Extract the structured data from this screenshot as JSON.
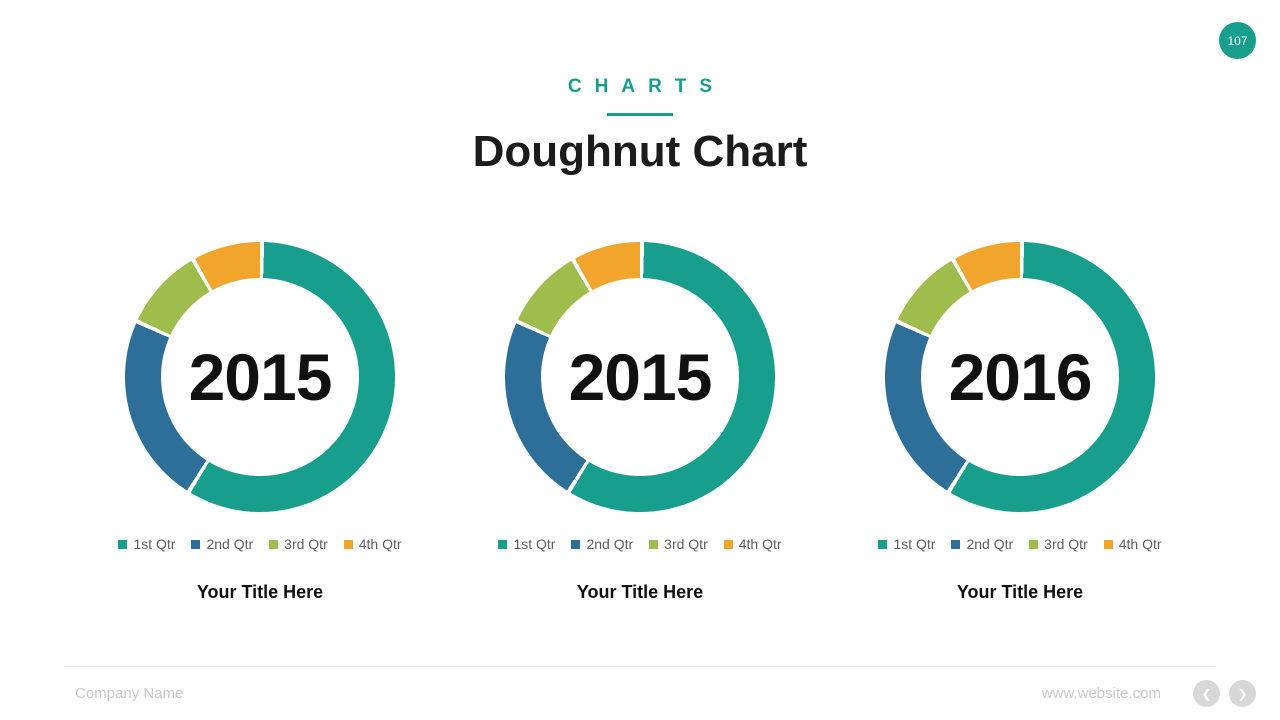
{
  "page_badge": "107",
  "header": {
    "eyebrow": "CHARTS",
    "title": "Doughnut Chart"
  },
  "accent_color": "#189e8c",
  "footer": {
    "company": "Company Name",
    "website": "www.website.com",
    "prev_icon": "❮",
    "next_icon": "❯"
  },
  "chart_data": [
    {
      "type": "doughnut",
      "center_label": "2015",
      "title": "Your Title Here",
      "categories": [
        "1st Qtr",
        "2nd Qtr",
        "3rd Qtr",
        "4th Qtr"
      ],
      "values": [
        58.6,
        22.9,
        10.0,
        8.5
      ],
      "unit": "percent",
      "segment_colors": [
        "#189e8c",
        "#2d6f99",
        "#9fbd4d",
        "#f2a52c"
      ],
      "hole_color": "#ffffff",
      "gap_degrees": 1.8,
      "start_angle": 0,
      "legend_position": "bottom"
    },
    {
      "type": "doughnut",
      "center_label": "2015",
      "title": "Your Title Here",
      "categories": [
        "1st Qtr",
        "2nd Qtr",
        "3rd Qtr",
        "4th Qtr"
      ],
      "values": [
        58.6,
        22.9,
        10.0,
        8.5
      ],
      "unit": "percent",
      "segment_colors": [
        "#189e8c",
        "#2d6f99",
        "#9fbd4d",
        "#f2a52c"
      ],
      "hole_color": "#ffffff",
      "gap_degrees": 1.8,
      "start_angle": 0,
      "legend_position": "bottom"
    },
    {
      "type": "doughnut",
      "center_label": "2016",
      "title": "Your Title Here",
      "categories": [
        "1st Qtr",
        "2nd Qtr",
        "3rd Qtr",
        "4th Qtr"
      ],
      "values": [
        58.6,
        22.9,
        10.0,
        8.5
      ],
      "unit": "percent",
      "segment_colors": [
        "#189e8c",
        "#2d6f99",
        "#9fbd4d",
        "#f2a52c"
      ],
      "hole_color": "#ffffff",
      "gap_degrees": 1.8,
      "start_angle": 0,
      "legend_position": "bottom"
    }
  ]
}
